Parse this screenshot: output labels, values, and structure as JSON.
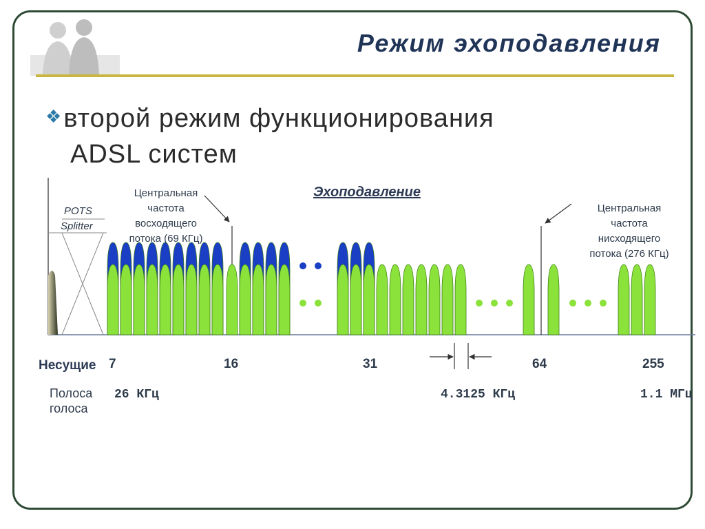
{
  "title": "Режим эхоподавления",
  "bullet": {
    "line1": "второй режим функционирования",
    "line2": "ADSL систем"
  },
  "diagram": {
    "pots_splitter": [
      "POTS",
      "Splitter"
    ],
    "upstream_center_label": [
      "Центральная",
      "частота",
      "восходящего",
      "потока (69 КГц)"
    ],
    "echo_cancel_label": "Эхоподавление",
    "downstream_center_label": [
      "Центральная",
      "частота",
      "нисходящего",
      "потока (276 КГц)"
    ],
    "carriers_label": "Несущие",
    "carrier_ticks": [
      "7",
      "16",
      "31",
      "64",
      "255"
    ],
    "voice_band_label": [
      "Полоса",
      "голоса"
    ],
    "freq_26": "26 КГц",
    "freq_spacing": "4.3125 КГц",
    "freq_max": "1.1 МГц",
    "colors": {
      "upstream": "#1a3fc4",
      "downstream": "#8be23a",
      "title": "#1f3457",
      "rule": "#c9b640"
    }
  }
}
